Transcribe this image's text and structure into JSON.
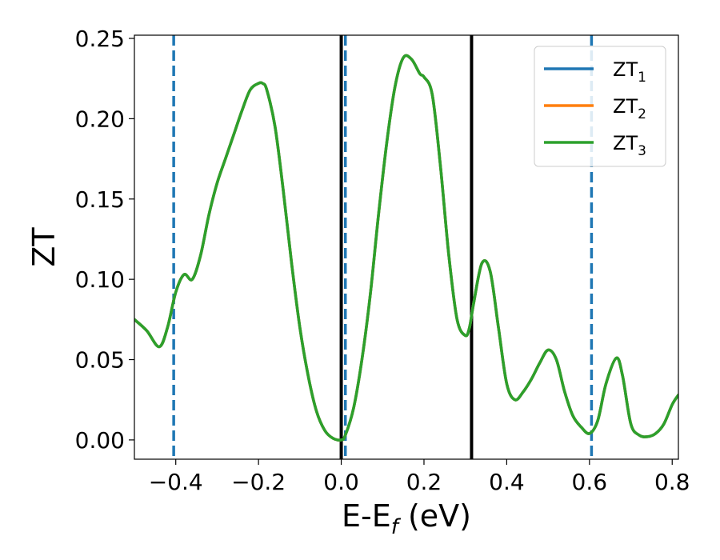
{
  "chart_data": {
    "type": "line",
    "title": "",
    "xlabel": "E-E",
    "xlabel_sub": "f",
    "xlabel_unit": " (eV)",
    "ylabel": "ZT",
    "xlim": [
      -0.5,
      0.815
    ],
    "ylim": [
      -0.012,
      0.252
    ],
    "x_ticks": [
      -0.4,
      -0.2,
      0.0,
      0.2,
      0.4,
      0.6,
      0.8
    ],
    "x_tick_labels": [
      "−0.4",
      "−0.2",
      "0.0",
      "0.2",
      "0.4",
      "0.6",
      "0.8"
    ],
    "y_ticks": [
      0.0,
      0.05,
      0.1,
      0.15,
      0.2,
      0.25
    ],
    "y_tick_labels": [
      "0.00",
      "0.05",
      "0.10",
      "0.15",
      "0.20",
      "0.25"
    ],
    "grid": false,
    "legend_position": "top-right",
    "series": [
      {
        "name": "ZT",
        "name_sub": "1",
        "color": "#1f77b4"
      },
      {
        "name": "ZT",
        "name_sub": "2",
        "color": "#ff7f0e"
      },
      {
        "name": "ZT",
        "name_sub": "3",
        "color": "#2ca02c"
      }
    ],
    "x": [
      -0.5,
      -0.47,
      -0.44,
      -0.42,
      -0.4,
      -0.38,
      -0.36,
      -0.34,
      -0.32,
      -0.3,
      -0.28,
      -0.26,
      -0.24,
      -0.22,
      -0.2,
      -0.19,
      -0.18,
      -0.16,
      -0.14,
      -0.12,
      -0.1,
      -0.08,
      -0.06,
      -0.04,
      -0.02,
      0.0,
      0.01,
      0.03,
      0.05,
      0.07,
      0.09,
      0.11,
      0.13,
      0.15,
      0.17,
      0.19,
      0.2,
      0.22,
      0.24,
      0.26,
      0.28,
      0.3,
      0.31,
      0.32,
      0.34,
      0.36,
      0.38,
      0.4,
      0.42,
      0.44,
      0.46,
      0.48,
      0.5,
      0.52,
      0.54,
      0.56,
      0.58,
      0.6,
      0.62,
      0.64,
      0.665,
      0.68,
      0.7,
      0.72,
      0.74,
      0.76,
      0.78,
      0.8,
      0.815
    ],
    "y": [
      0.075,
      0.068,
      0.058,
      0.07,
      0.092,
      0.103,
      0.1,
      0.115,
      0.14,
      0.16,
      0.175,
      0.19,
      0.205,
      0.218,
      0.222,
      0.222,
      0.218,
      0.195,
      0.155,
      0.11,
      0.07,
      0.04,
      0.018,
      0.006,
      0.001,
      0.0,
      0.003,
      0.02,
      0.05,
      0.09,
      0.14,
      0.185,
      0.22,
      0.238,
      0.237,
      0.228,
      0.226,
      0.215,
      0.17,
      0.115,
      0.075,
      0.065,
      0.07,
      0.085,
      0.11,
      0.105,
      0.07,
      0.035,
      0.025,
      0.03,
      0.038,
      0.048,
      0.056,
      0.05,
      0.03,
      0.015,
      0.008,
      0.004,
      0.012,
      0.035,
      0.051,
      0.04,
      0.01,
      0.003,
      0.002,
      0.004,
      0.01,
      0.022,
      0.028
    ],
    "vlines": [
      {
        "x": -0.405,
        "style": "dashed",
        "color": "#1f77b4"
      },
      {
        "x": 0.0,
        "style": "solid",
        "color": "#000000"
      },
      {
        "x": 0.01,
        "style": "dashed",
        "color": "#1f77b4"
      },
      {
        "x": 0.315,
        "style": "solid",
        "color": "#000000"
      },
      {
        "x": 0.605,
        "style": "dashed",
        "color": "#1f77b4"
      }
    ]
  }
}
